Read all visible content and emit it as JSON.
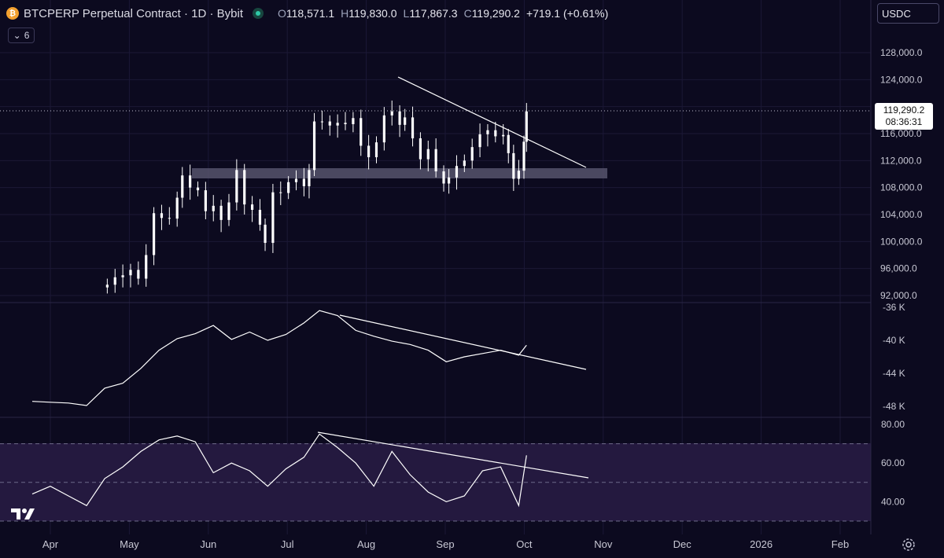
{
  "header": {
    "symbol_icon": "bitcoin-icon",
    "title": "BTCPERP Perpetual Contract · 1D · Bybit",
    "open_label": "O",
    "open": "118,571.1",
    "high_label": "H",
    "high": "119,830.0",
    "low_label": "L",
    "low": "117,867.3",
    "close_label": "C",
    "close": "119,290.2",
    "change": "+719.1 (+0.61%)"
  },
  "collapse_button": {
    "icon": "chevron-down-icon",
    "count": "6"
  },
  "currency_selector": "USDC",
  "current_price": {
    "price": "119,290.2",
    "countdown": "08:36:31"
  },
  "colors": {
    "background": "#0c0a1f",
    "candle": "#ffffff",
    "zone": "#5a5870",
    "rsi_band": "#2a2050",
    "grid": "#1f1c3a"
  },
  "chart_data": [
    {
      "type": "candlestick",
      "panel": "price",
      "yticks": [
        "128,000.0",
        "124,000.0",
        "120,000.0",
        "116,000.0",
        "112,000.0",
        "108,000.0",
        "104,000.0",
        "100,000.0",
        "96,000.0",
        "92,000.0"
      ],
      "ylim": [
        90000,
        132000
      ],
      "x": [
        "2025-04-23",
        "2025-04-26",
        "2025-04-29",
        "2025-05-02",
        "2025-05-05",
        "2025-05-08",
        "2025-05-11",
        "2025-05-14",
        "2025-05-17",
        "2025-05-20",
        "2025-05-22",
        "2025-05-25",
        "2025-05-28",
        "2025-05-31",
        "2025-06-03",
        "2025-06-06",
        "2025-06-09",
        "2025-06-12",
        "2025-06-15",
        "2025-06-18",
        "2025-06-21",
        "2025-06-23",
        "2025-06-26",
        "2025-06-29",
        "2025-07-02",
        "2025-07-05",
        "2025-07-08",
        "2025-07-10",
        "2025-07-12",
        "2025-07-15",
        "2025-07-18",
        "2025-07-21",
        "2025-07-24",
        "2025-07-27",
        "2025-07-30",
        "2025-08-02",
        "2025-08-05",
        "2025-08-08",
        "2025-08-11",
        "2025-08-14",
        "2025-08-16",
        "2025-08-19",
        "2025-08-22",
        "2025-08-25",
        "2025-08-28",
        "2025-08-31",
        "2025-09-02",
        "2025-09-05",
        "2025-09-08",
        "2025-09-11",
        "2025-09-14",
        "2025-09-17",
        "2025-09-20",
        "2025-09-23",
        "2025-09-25",
        "2025-09-27",
        "2025-09-29",
        "2025-10-01",
        "2025-10-02"
      ],
      "close": [
        93600,
        94700,
        95000,
        95800,
        94500,
        98000,
        104200,
        103500,
        103400,
        106500,
        109800,
        108000,
        107600,
        104500,
        105300,
        103200,
        105800,
        110600,
        105500,
        104700,
        102500,
        99800,
        107300,
        107200,
        108800,
        109300,
        108200,
        110600,
        117800,
        117800,
        117200,
        117600,
        117400,
        118300,
        114200,
        112500,
        114700,
        118700,
        119300,
        117300,
        118400,
        115300,
        112200,
        113700,
        110400,
        108600,
        109500,
        111200,
        112000,
        114000,
        115900,
        116500,
        115600,
        115800,
        113100,
        109300,
        110500,
        114800,
        119290
      ]
    },
    {
      "type": "line",
      "panel": "indicator",
      "yticks": [
        "-36 K",
        "-40 K",
        "-44 K",
        "-48 K"
      ],
      "ylim": [
        -49000,
        -35500
      ],
      "x": [
        "2025-03-25",
        "2025-04-01",
        "2025-04-08",
        "2025-04-15",
        "2025-04-22",
        "2025-04-29",
        "2025-05-06",
        "2025-05-13",
        "2025-05-20",
        "2025-05-27",
        "2025-06-03",
        "2025-06-10",
        "2025-06-17",
        "2025-06-24",
        "2025-07-01",
        "2025-07-08",
        "2025-07-14",
        "2025-07-21",
        "2025-07-28",
        "2025-08-04",
        "2025-08-11",
        "2025-08-18",
        "2025-08-25",
        "2025-09-01",
        "2025-09-08",
        "2025-09-15",
        "2025-09-22",
        "2025-09-29",
        "2025-10-02"
      ],
      "values": [
        -47400,
        -47500,
        -47600,
        -47900,
        -45800,
        -45200,
        -43400,
        -41200,
        -39800,
        -39200,
        -38200,
        -39900,
        -39000,
        -40000,
        -39300,
        -37900,
        -36400,
        -37000,
        -38800,
        -39500,
        -40100,
        -40500,
        -41200,
        -42600,
        -42000,
        -41600,
        -41200,
        -41800,
        -40600
      ]
    },
    {
      "type": "line",
      "panel": "rsi",
      "yticks": [
        "80.00",
        "60.00",
        "40.00"
      ],
      "ylim": [
        30,
        82
      ],
      "band": [
        30,
        70
      ],
      "levels": [
        70,
        50,
        30
      ],
      "x": [
        "2025-03-25",
        "2025-04-01",
        "2025-04-08",
        "2025-04-15",
        "2025-04-22",
        "2025-04-29",
        "2025-05-06",
        "2025-05-13",
        "2025-05-20",
        "2025-05-27",
        "2025-06-03",
        "2025-06-10",
        "2025-06-17",
        "2025-06-24",
        "2025-07-01",
        "2025-07-08",
        "2025-07-14",
        "2025-07-21",
        "2025-07-28",
        "2025-08-04",
        "2025-08-11",
        "2025-08-18",
        "2025-08-25",
        "2025-09-01",
        "2025-09-08",
        "2025-09-15",
        "2025-09-22",
        "2025-09-29",
        "2025-10-02"
      ],
      "values": [
        44,
        48,
        43,
        38,
        52,
        58,
        66,
        72,
        74,
        71,
        55,
        60,
        56,
        48,
        57,
        63,
        75,
        68,
        60,
        48,
        66,
        54,
        45,
        40,
        43,
        56,
        58,
        38,
        64
      ]
    }
  ],
  "x_axis_labels": [
    "Apr",
    "May",
    "Jun",
    "Jul",
    "Aug",
    "Sep",
    "Oct",
    "Nov",
    "Dec",
    "2026",
    "Feb"
  ],
  "footer": {
    "logo": "tradingview-logo",
    "settings_icon": "gear-icon"
  }
}
